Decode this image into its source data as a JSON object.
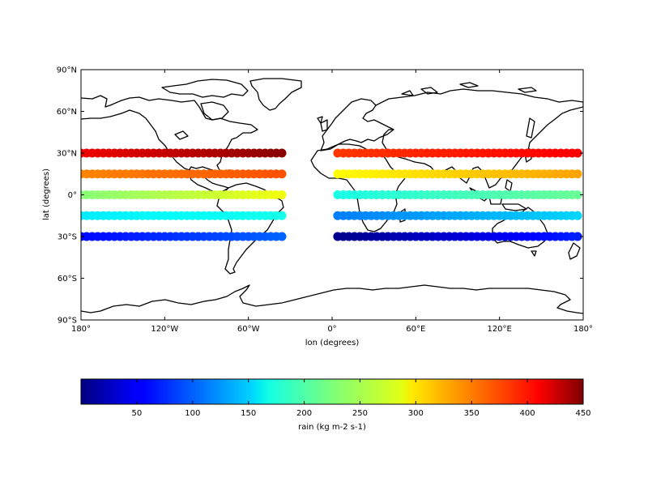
{
  "chart_data": {
    "type": "scatter",
    "map": {
      "projection": "PlateCarree",
      "coastlines": true
    },
    "xlabel": "lon (degrees)",
    "ylabel": "lat (degrees)",
    "xlim": [
      -180,
      180
    ],
    "ylim": [
      -90,
      90
    ],
    "x_ticks": [
      {
        "value": -180,
        "label": "180°"
      },
      {
        "value": -120,
        "label": "120°W"
      },
      {
        "value": -60,
        "label": "60°W"
      },
      {
        "value": 0,
        "label": "0°"
      },
      {
        "value": 60,
        "label": "60°E"
      },
      {
        "value": 120,
        "label": "120°E"
      },
      {
        "value": 180,
        "label": "180°"
      }
    ],
    "y_ticks": [
      {
        "value": 90,
        "label": "90°N"
      },
      {
        "value": 60,
        "label": "60°N"
      },
      {
        "value": 30,
        "label": "30°N"
      },
      {
        "value": 0,
        "label": "0°"
      },
      {
        "value": -30,
        "label": "30°S"
      },
      {
        "value": -60,
        "label": "60°S"
      },
      {
        "value": -90,
        "label": "90°S"
      }
    ],
    "colorbar": {
      "label": "rain (kg m-2 s-1)",
      "range": [
        0,
        450
      ],
      "orientation": "horizontal",
      "cmap": "jet",
      "ticks": [
        50,
        100,
        150,
        200,
        250,
        300,
        350,
        400,
        450
      ]
    },
    "lon_spacing_deg": 4,
    "rows": [
      {
        "lat": 30,
        "segments": [
          {
            "lon_start": -180,
            "lon_end": -36,
            "v_start": 400,
            "v_end": 445
          },
          {
            "lon_start": 4,
            "lon_end": 176,
            "v_start": 370,
            "v_end": 395
          }
        ]
      },
      {
        "lat": 15,
        "segments": [
          {
            "lon_start": -180,
            "lon_end": -36,
            "v_start": 335,
            "v_end": 358
          },
          {
            "lon_start": 4,
            "lon_end": 176,
            "v_start": 282,
            "v_end": 322
          }
        ]
      },
      {
        "lat": 0,
        "segments": [
          {
            "lon_start": -180,
            "lon_end": -36,
            "v_start": 228,
            "v_end": 275
          },
          {
            "lon_start": 4,
            "lon_end": 176,
            "v_start": 180,
            "v_end": 215
          }
        ]
      },
      {
        "lat": -15,
        "segments": [
          {
            "lon_start": -180,
            "lon_end": -36,
            "v_start": 160,
            "v_end": 178
          },
          {
            "lon_start": 4,
            "lon_end": 176,
            "v_start": 112,
            "v_end": 150
          }
        ]
      },
      {
        "lat": -30,
        "segments": [
          {
            "lon_start": -180,
            "lon_end": -36,
            "v_start": 58,
            "v_end": 100
          },
          {
            "lon_start": 4,
            "lon_end": 176,
            "v_start": 5,
            "v_end": 70
          }
        ]
      }
    ]
  }
}
